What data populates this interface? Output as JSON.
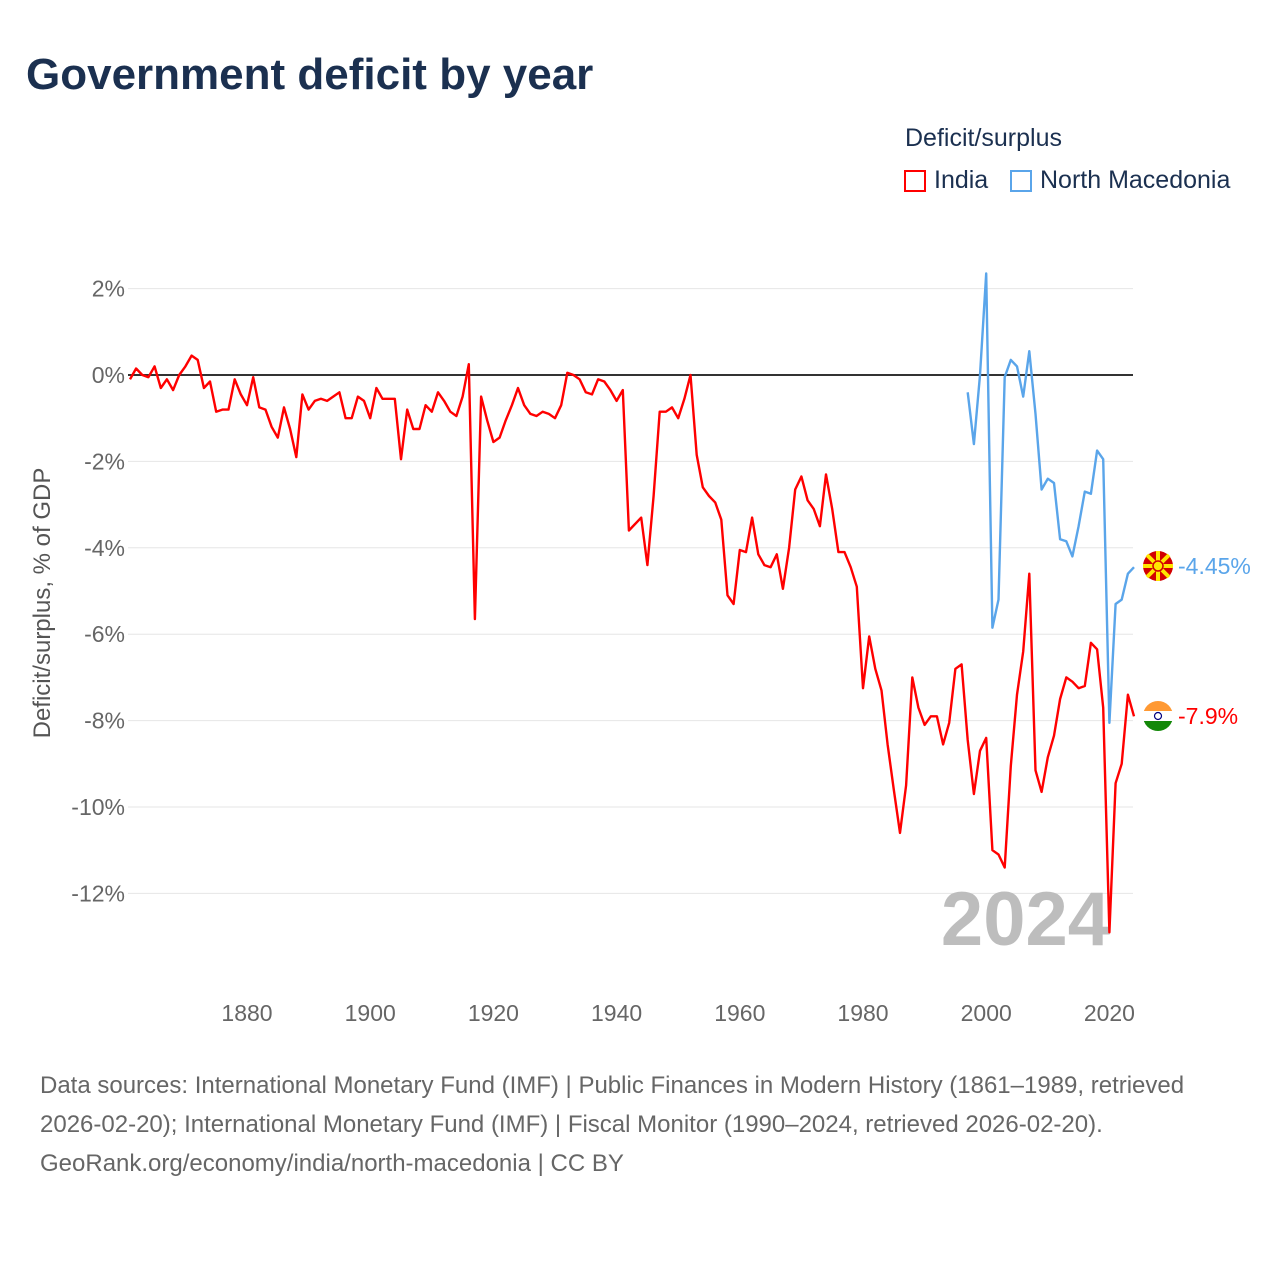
{
  "chart_data": {
    "type": "line",
    "title": "Government deficit by year",
    "xlabel": "",
    "ylabel": "Deficit/surplus, % of GDP",
    "xlim": [
      1861,
      2024
    ],
    "ylim": [
      -13.5,
      2.5
    ],
    "yticks": [
      2,
      0,
      -2,
      -4,
      -6,
      -8,
      -10,
      -12
    ],
    "ytick_labels": [
      "2%",
      "0%",
      "-2%",
      "-4%",
      "-6%",
      "-8%",
      "-10%",
      "-12%"
    ],
    "xticks": [
      1880,
      1900,
      1920,
      1940,
      1960,
      1980,
      2000,
      2020
    ],
    "xtick_labels": [
      "1880",
      "1900",
      "1920",
      "1940",
      "1960",
      "1980",
      "2000",
      "2020"
    ],
    "legend": {
      "title": "Deficit/surplus",
      "placement": "top-right"
    },
    "year_watermark": "2024",
    "series": [
      {
        "name": "India",
        "color": "#ff0000",
        "start_year": 1861,
        "end_label": "-7.9%",
        "values": [
          -0.1,
          0.15,
          0.0,
          -0.05,
          0.2,
          -0.3,
          -0.1,
          -0.35,
          0.0,
          0.2,
          0.45,
          0.35,
          -0.3,
          -0.15,
          -0.85,
          -0.8,
          -0.8,
          -0.1,
          -0.45,
          -0.7,
          -0.05,
          -0.75,
          -0.8,
          -1.2,
          -1.45,
          -0.75,
          -1.25,
          -1.9,
          -0.45,
          -0.8,
          -0.6,
          -0.55,
          -0.6,
          -0.5,
          -0.4,
          -1.0,
          -1.0,
          -0.5,
          -0.6,
          -1.0,
          -0.3,
          -0.55,
          -0.55,
          -0.55,
          -1.95,
          -0.8,
          -1.25,
          -1.25,
          -0.7,
          -0.85,
          -0.4,
          -0.6,
          -0.85,
          -0.95,
          -0.5,
          0.25,
          -5.65,
          -0.5,
          -1.05,
          -1.55,
          -1.45,
          -1.05,
          -0.7,
          -0.3,
          -0.7,
          -0.9,
          -0.95,
          -0.85,
          -0.9,
          -1.0,
          -0.7,
          0.05,
          0.0,
          -0.1,
          -0.4,
          -0.45,
          -0.1,
          -0.15,
          -0.35,
          -0.6,
          -0.35,
          -3.6,
          -3.45,
          -3.3,
          -4.4,
          -2.8,
          -0.85,
          -0.85,
          -0.75,
          -1.0,
          -0.55,
          0.0,
          -1.85,
          -2.6,
          -2.8,
          -2.95,
          -3.35,
          -5.1,
          -5.3,
          -4.05,
          -4.1,
          -3.3,
          -4.15,
          -4.4,
          -4.45,
          -4.15,
          -4.95,
          -4.0,
          -2.65,
          -2.35,
          -2.9,
          -3.1,
          -3.5,
          -2.3,
          -3.1,
          -4.1,
          -4.1,
          -4.45,
          -4.9,
          -7.25,
          -6.05,
          -6.8,
          -7.3,
          -8.55,
          -9.6,
          -10.6,
          -9.5,
          -7.0,
          -7.7,
          -8.1,
          -7.9,
          -7.9,
          -8.55,
          -8.05,
          -6.8,
          -6.7,
          -8.45,
          -9.7,
          -8.7,
          -8.4,
          -11.0,
          -11.1,
          -11.4,
          -9.05,
          -7.4,
          -6.4,
          -4.6,
          -9.15,
          -9.65,
          -8.85,
          -8.35,
          -7.5,
          -7.0,
          -7.1,
          -7.25,
          -7.2,
          -6.2,
          -6.35,
          -7.7,
          -12.9,
          -9.45,
          -9.0,
          -7.4,
          -7.9
        ]
      },
      {
        "name": "North Macedonia",
        "color": "#5aa5ea",
        "start_year": 1997,
        "end_label": "-4.45%",
        "values": [
          -0.4,
          -1.6,
          0.0,
          2.35,
          -5.85,
          -5.2,
          -0.05,
          0.35,
          0.2,
          -0.5,
          0.55,
          -0.9,
          -2.65,
          -2.4,
          -2.5,
          -3.8,
          -3.85,
          -4.2,
          -3.5,
          -2.7,
          -2.75,
          -1.75,
          -1.95,
          -8.05,
          -5.3,
          -5.2,
          -4.6,
          -4.45
        ]
      }
    ]
  },
  "footer": {
    "sources": "Data sources: International Monetary Fund (IMF) | Public Finances in Modern History (1861–1989, retrieved 2026-02-20); International Monetary Fund (IMF) | Fiscal Monitor (1990–2024, retrieved 2026-02-20).",
    "credit": "GeoRank.org/economy/india/north-macedonia | CC BY"
  }
}
